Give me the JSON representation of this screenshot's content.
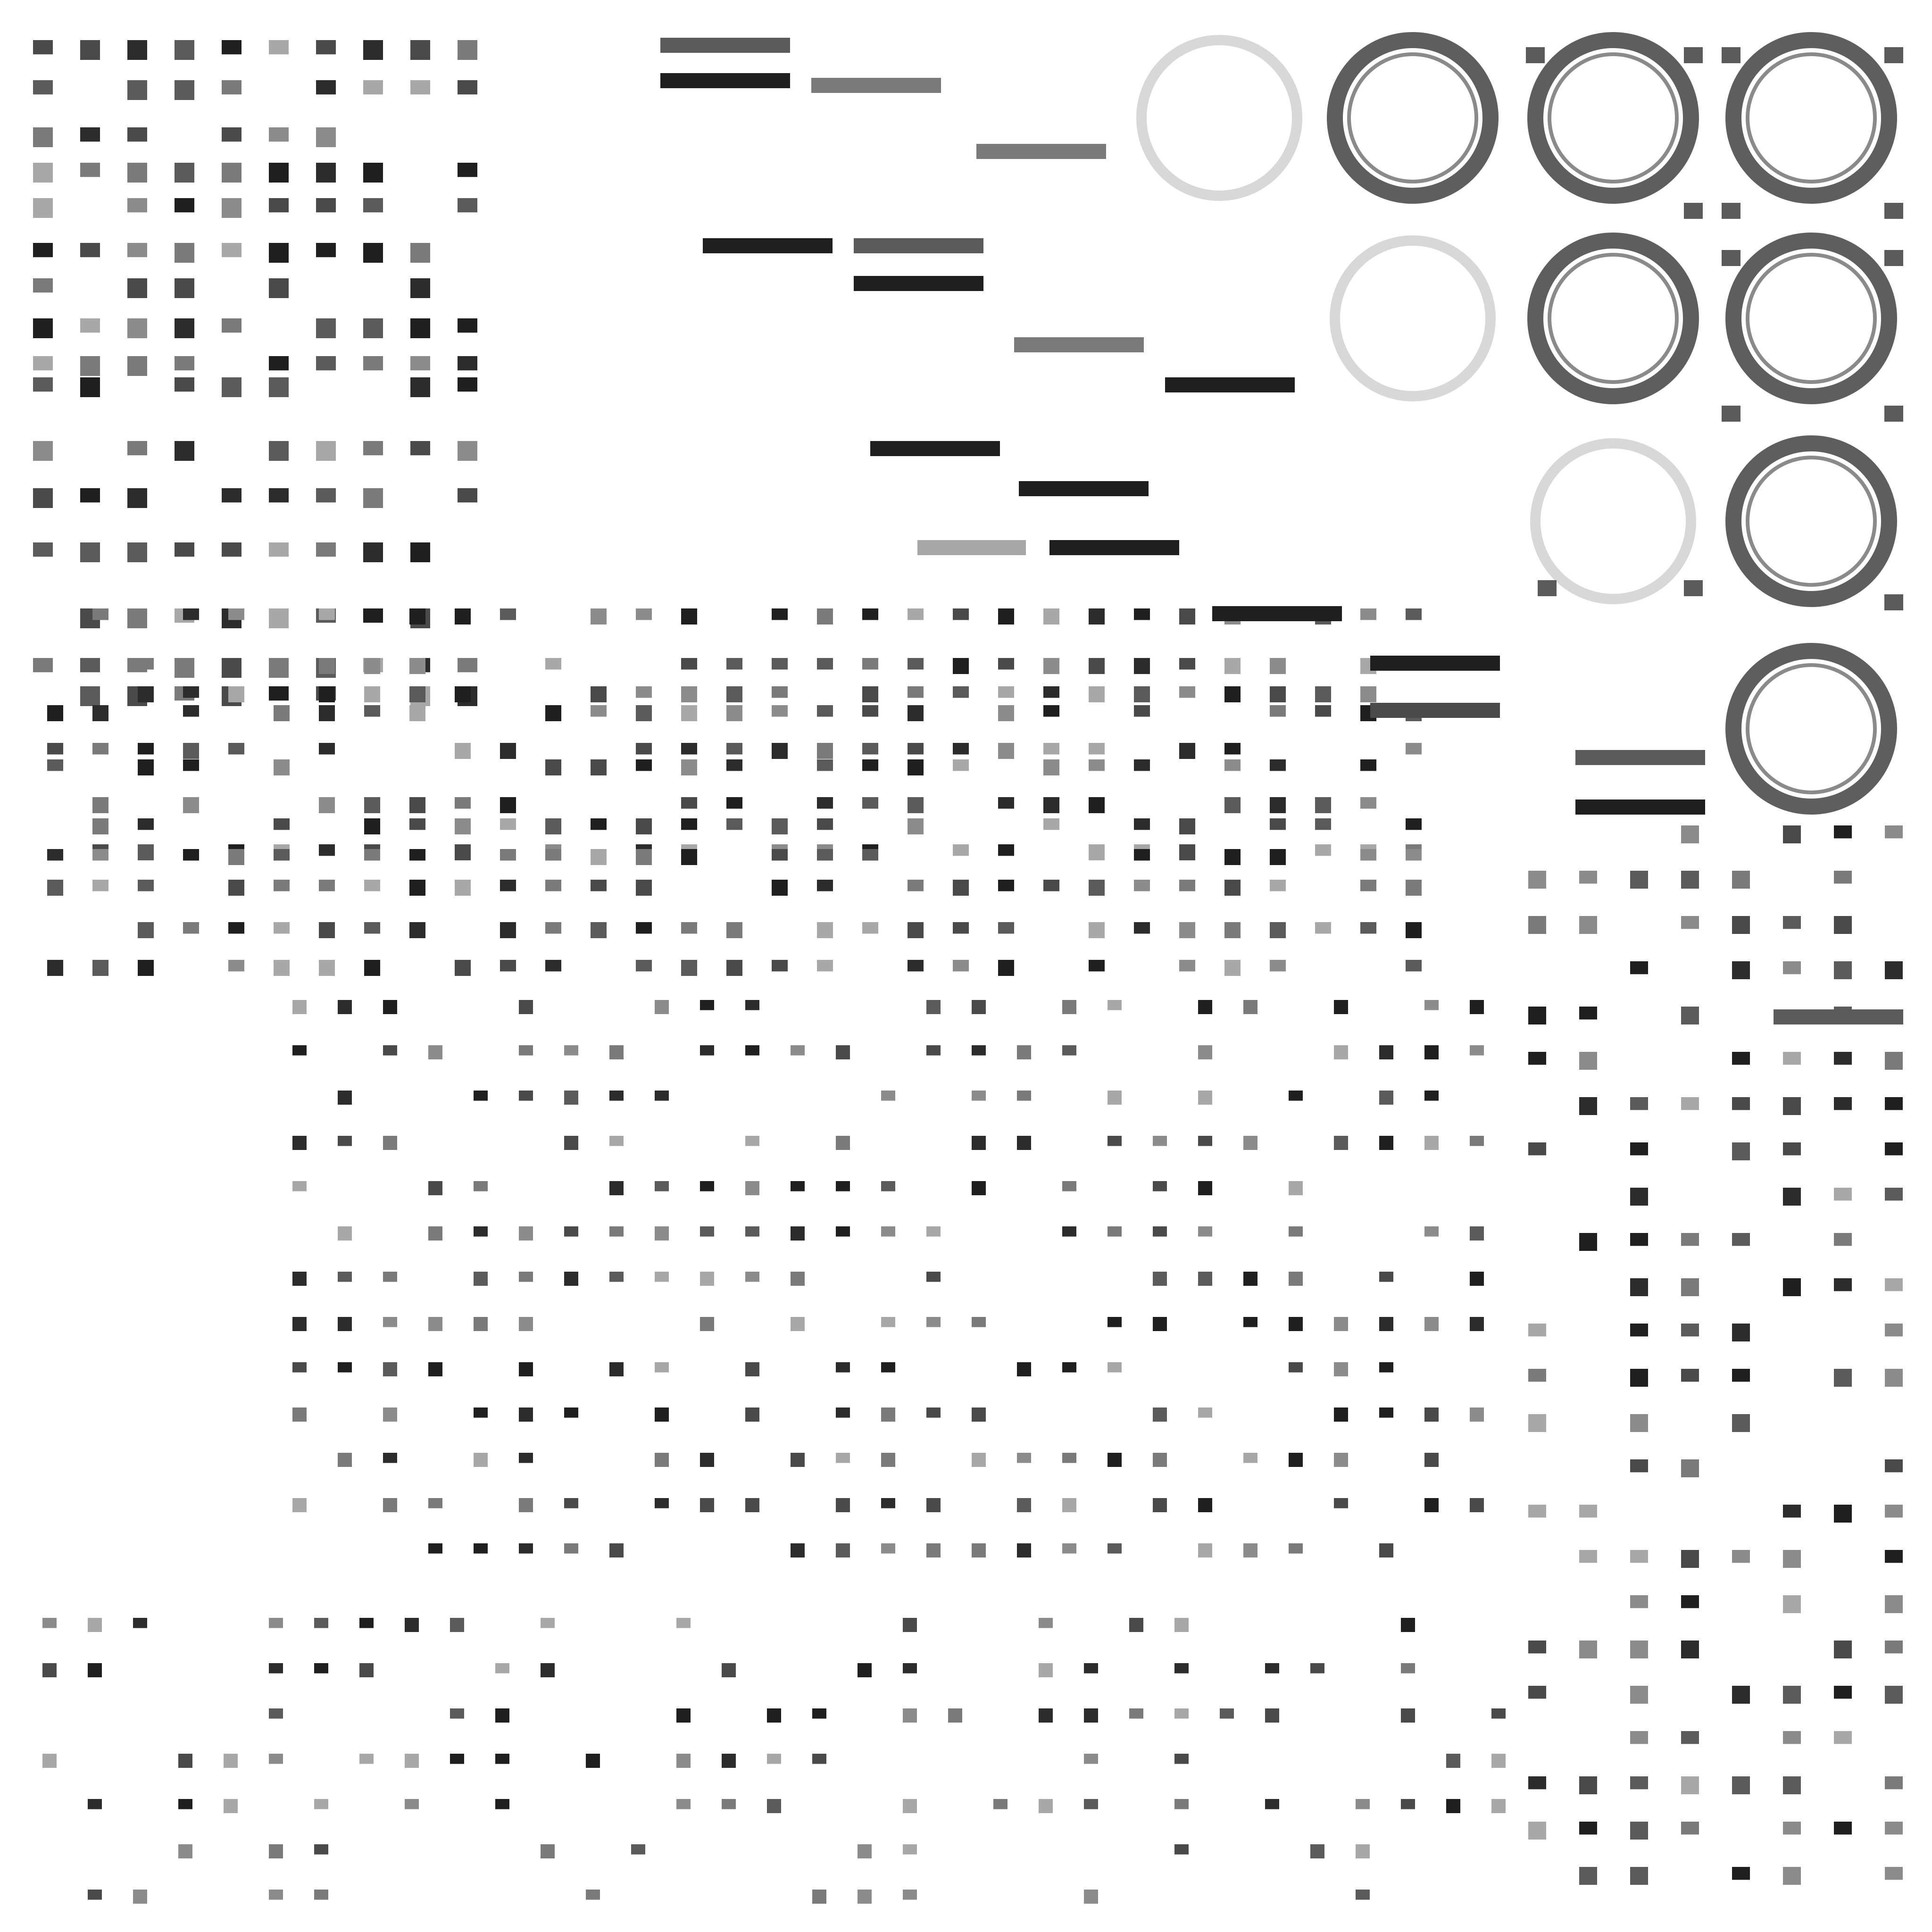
{
  "atlas": {
    "background": "#ffffff",
    "ink_dark": "#1f1f1f",
    "ink_mid": "#5a5a5a",
    "ink_light": "#a8a8a8",
    "ring_color": "#5e5e5e",
    "ring_pale": "#d8d8d8"
  }
}
